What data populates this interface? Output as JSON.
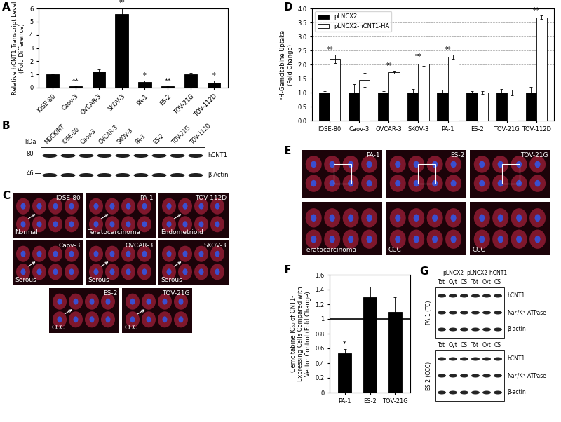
{
  "chart_data": [
    {
      "panel": "A",
      "type": "bar",
      "ylabel": "Relative hCNT1 Transcript Level\n(Fold Difference)",
      "categories": [
        "IOSE-80",
        "Caov-3",
        "OVCAR-3",
        "SKOV-3",
        "PA-1",
        "ES-2",
        "TOV-21G",
        "TOV-112D"
      ],
      "values": [
        1.0,
        0.1,
        1.2,
        5.55,
        0.45,
        0.1,
        1.0,
        0.35
      ],
      "errors": [
        0,
        0.03,
        0.2,
        0.5,
        0.08,
        0.03,
        0.1,
        0.2
      ],
      "significance": [
        null,
        "**",
        null,
        "**",
        "*",
        "**",
        null,
        "*"
      ],
      "color": "#000000",
      "ylim": [
        0,
        6
      ],
      "yticks": [
        0,
        1,
        2,
        3,
        4,
        5,
        6
      ]
    },
    {
      "panel": "D",
      "type": "bar",
      "ylabel": "³H-Gemcitabine Uptake\n(Fold Change)",
      "categories": [
        "IOSE-80",
        "Caov-3",
        "OVCAR-3",
        "SKOV-3",
        "PA-1",
        "ES-2",
        "TOV-21G",
        "TOV-112D"
      ],
      "series": [
        {
          "name": "pLNCX2",
          "color": "#000000",
          "values": [
            1.0,
            1.0,
            1.0,
            1.0,
            1.0,
            1.0,
            1.0,
            1.0
          ],
          "errors": [
            0.06,
            0.3,
            0.05,
            0.12,
            0.1,
            0.05,
            0.12,
            0.2
          ]
        },
        {
          "name": "pLNCX2-hCNT1-HA",
          "color": "#ffffff",
          "values": [
            2.2,
            1.45,
            1.72,
            2.02,
            2.27,
            1.0,
            1.0,
            3.68
          ],
          "errors": [
            0.15,
            0.25,
            0.05,
            0.08,
            0.07,
            0.06,
            0.1,
            0.06
          ]
        }
      ],
      "significance": [
        "**",
        null,
        "**",
        "**",
        "**",
        null,
        null,
        "**"
      ],
      "ylim": [
        0,
        4
      ],
      "yticks": [
        {
          "value": 0,
          "label": "0.0"
        },
        {
          "value": 0.5,
          "label": "0.5"
        },
        {
          "value": 1,
          "label": "1.0"
        },
        {
          "value": 1.5,
          "label": "1.5"
        },
        {
          "value": 2,
          "label": "2.0"
        },
        {
          "value": 2.5,
          "label": "2.5"
        },
        {
          "value": 3,
          "label": "3.0"
        },
        {
          "value": 3.5,
          "label": "3.5"
        },
        {
          "value": 4,
          "label": "4.0"
        }
      ],
      "grid": true,
      "legend": "upper left"
    },
    {
      "panel": "F",
      "type": "bar",
      "ylabel": "Gemcitabine IC₅₀ of CNT1-\nExpressing Cells Compared with\nVector Control (Fold Change)",
      "categories": [
        "PA-1",
        "ES-2",
        "TOV-21G"
      ],
      "values": [
        0.53,
        1.3,
        1.1
      ],
      "errors": [
        0.06,
        0.14,
        0.2
      ],
      "significance": [
        "*",
        null,
        null
      ],
      "reference_line": 1,
      "color": "#000000",
      "ylim": [
        0,
        1.6
      ],
      "yticks": [
        0,
        0.2,
        0.4,
        0.6,
        0.8,
        1,
        1.2,
        1.4,
        1.6
      ]
    }
  ],
  "blot_B": {
    "panel": "B",
    "kda_label": "kDa",
    "markers_kda": [
      80,
      46
    ],
    "lanes": [
      "MDCK/NT",
      "IOSE-80",
      "Caov-3",
      "OVCAR-3",
      "SKOV-3",
      "PA-1",
      "ES-2",
      "TOV-21G",
      "TOV-112D"
    ],
    "bands": [
      "hCNT1",
      "β-Actin"
    ]
  },
  "micrographs_C": {
    "panel": "C",
    "images": [
      {
        "cell_line": "IOSE-80",
        "histotype": "Normal"
      },
      {
        "cell_line": "PA-1",
        "histotype": "Teratocarcinoma"
      },
      {
        "cell_line": "TOV-112D",
        "histotype": "Endometrioid"
      },
      {
        "cell_line": "Caov-3",
        "histotype": "Serous"
      },
      {
        "cell_line": "OVCAR-3",
        "histotype": "Serous"
      },
      {
        "cell_line": "SKOV-3",
        "histotype": "Serous"
      },
      {
        "cell_line": "ES-2",
        "histotype": "CCC"
      },
      {
        "cell_line": "TOV-21G",
        "histotype": "CCC"
      }
    ]
  },
  "micrographs_E": {
    "panel": "E",
    "images": [
      {
        "cell_line": "PA-1",
        "histotype": "Teratocarcinoma"
      },
      {
        "cell_line": "ES-2",
        "histotype": "CCC"
      },
      {
        "cell_line": "TOV-21G",
        "histotype": "CCC"
      }
    ]
  },
  "blot_G": {
    "panel": "G",
    "groups": [
      "pLNCX2",
      "pLNCX2-hCNT1"
    ],
    "fractions": [
      "Tot",
      "Cyt",
      "CS"
    ],
    "bands": [
      "hCNT1",
      "Na⁺/K⁺-ATPase",
      "β-actin"
    ],
    "cell_lines": [
      "PA-1 (TC)",
      "ES-2 (CCC)"
    ]
  }
}
